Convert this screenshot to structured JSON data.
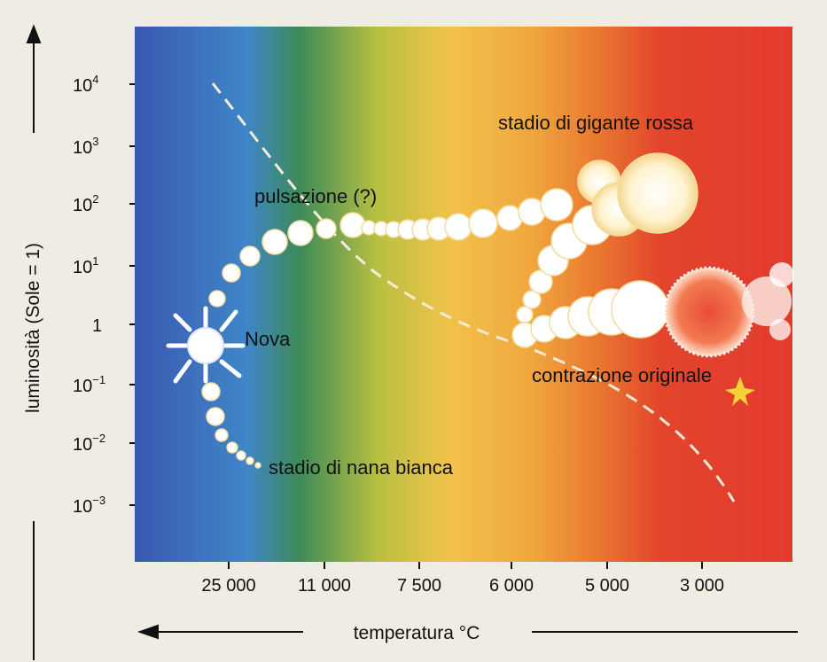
{
  "y_axis": {
    "label": "luminosità (Sole = 1)",
    "ticks": [
      {
        "base": "10",
        "exp": "4"
      },
      {
        "base": "10",
        "exp": "3"
      },
      {
        "base": "10",
        "exp": "2"
      },
      {
        "base": "10",
        "exp": "1"
      },
      {
        "base": "1",
        "exp": ""
      },
      {
        "base": "10",
        "exp": "−1"
      },
      {
        "base": "10",
        "exp": "−2"
      },
      {
        "base": "10",
        "exp": "−3"
      }
    ]
  },
  "x_axis": {
    "label": "temperatura °C",
    "ticks": [
      "25 000",
      "11 000",
      "7 500",
      "6 000",
      "5 000",
      "3 000"
    ]
  },
  "annotations": {
    "red_giant": "stadio di gigante rossa",
    "pulsation": "pulsazione (?)",
    "nova": "Nova",
    "contraction": "contrazione originale",
    "white_dwarf": "stadio di nana bianca"
  },
  "colors": {
    "background": "#efece3",
    "spectrum": [
      "#3a57b0",
      "#3f86c8",
      "#3d8a5a",
      "#b9c042",
      "#f2c24a",
      "#f0a83e",
      "#ea7a30",
      "#e2452c",
      "#e33a2e"
    ],
    "track": "#ffffff",
    "giant_fill": "#fff6d8"
  }
}
